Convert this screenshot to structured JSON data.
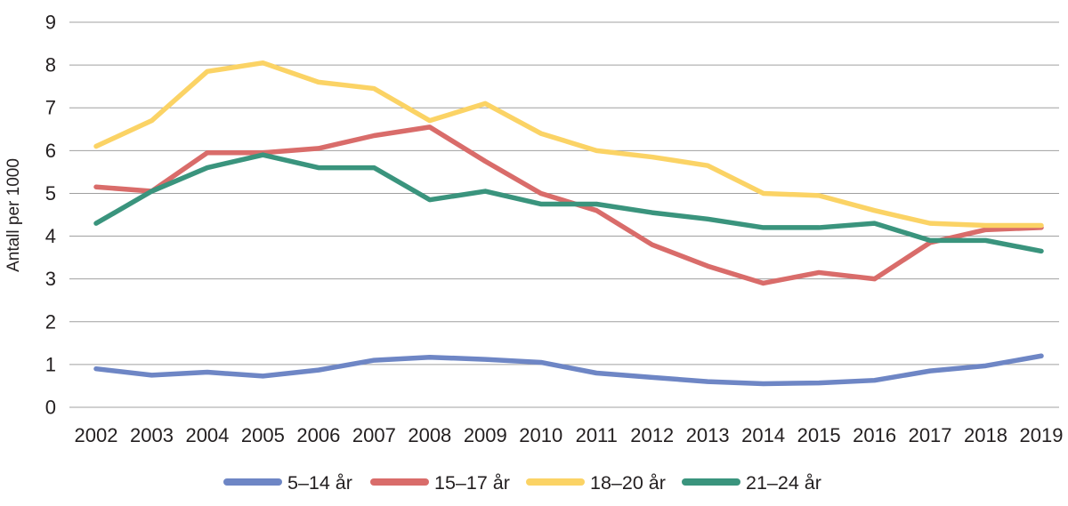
{
  "chart_data": {
    "type": "line",
    "title": "",
    "xlabel": "",
    "ylabel": "Antall per 1000",
    "x": [
      2002,
      2003,
      2004,
      2005,
      2006,
      2007,
      2008,
      2009,
      2010,
      2011,
      2012,
      2013,
      2014,
      2015,
      2016,
      2017,
      2018,
      2019
    ],
    "ylim": [
      0,
      9
    ],
    "ytick_step": 1,
    "yticks": [
      0,
      1,
      2,
      3,
      4,
      5,
      6,
      7,
      8,
      9
    ],
    "grid": true,
    "legend_position": "bottom",
    "series": [
      {
        "name": "5–14 år",
        "color": "#6e86c5",
        "values": [
          0.9,
          0.75,
          0.82,
          0.73,
          0.87,
          1.1,
          1.17,
          1.12,
          1.05,
          0.8,
          0.7,
          0.6,
          0.55,
          0.57,
          0.63,
          0.85,
          0.97,
          1.2
        ]
      },
      {
        "name": "15–17 år",
        "color": "#d96c6a",
        "values": [
          5.15,
          5.05,
          5.95,
          5.95,
          6.05,
          6.35,
          6.55,
          5.75,
          5.0,
          4.6,
          3.8,
          3.3,
          2.9,
          3.15,
          3.0,
          3.85,
          4.15,
          4.2
        ]
      },
      {
        "name": "18–20 år",
        "color": "#fbd365",
        "values": [
          6.1,
          6.7,
          7.85,
          8.05,
          7.6,
          7.45,
          6.7,
          7.1,
          6.4,
          6.0,
          5.85,
          5.65,
          5.0,
          4.95,
          4.6,
          4.3,
          4.25,
          4.25
        ]
      },
      {
        "name": "21–24 år",
        "color": "#3a947d",
        "values": [
          4.3,
          5.05,
          5.6,
          5.9,
          5.6,
          5.6,
          4.85,
          5.05,
          4.75,
          4.75,
          4.55,
          4.4,
          4.2,
          4.2,
          4.3,
          3.9,
          3.9,
          3.65
        ]
      }
    ],
    "colors": {
      "grid": "#a0a0a0",
      "text": "#231f20",
      "background": "#ffffff"
    }
  }
}
